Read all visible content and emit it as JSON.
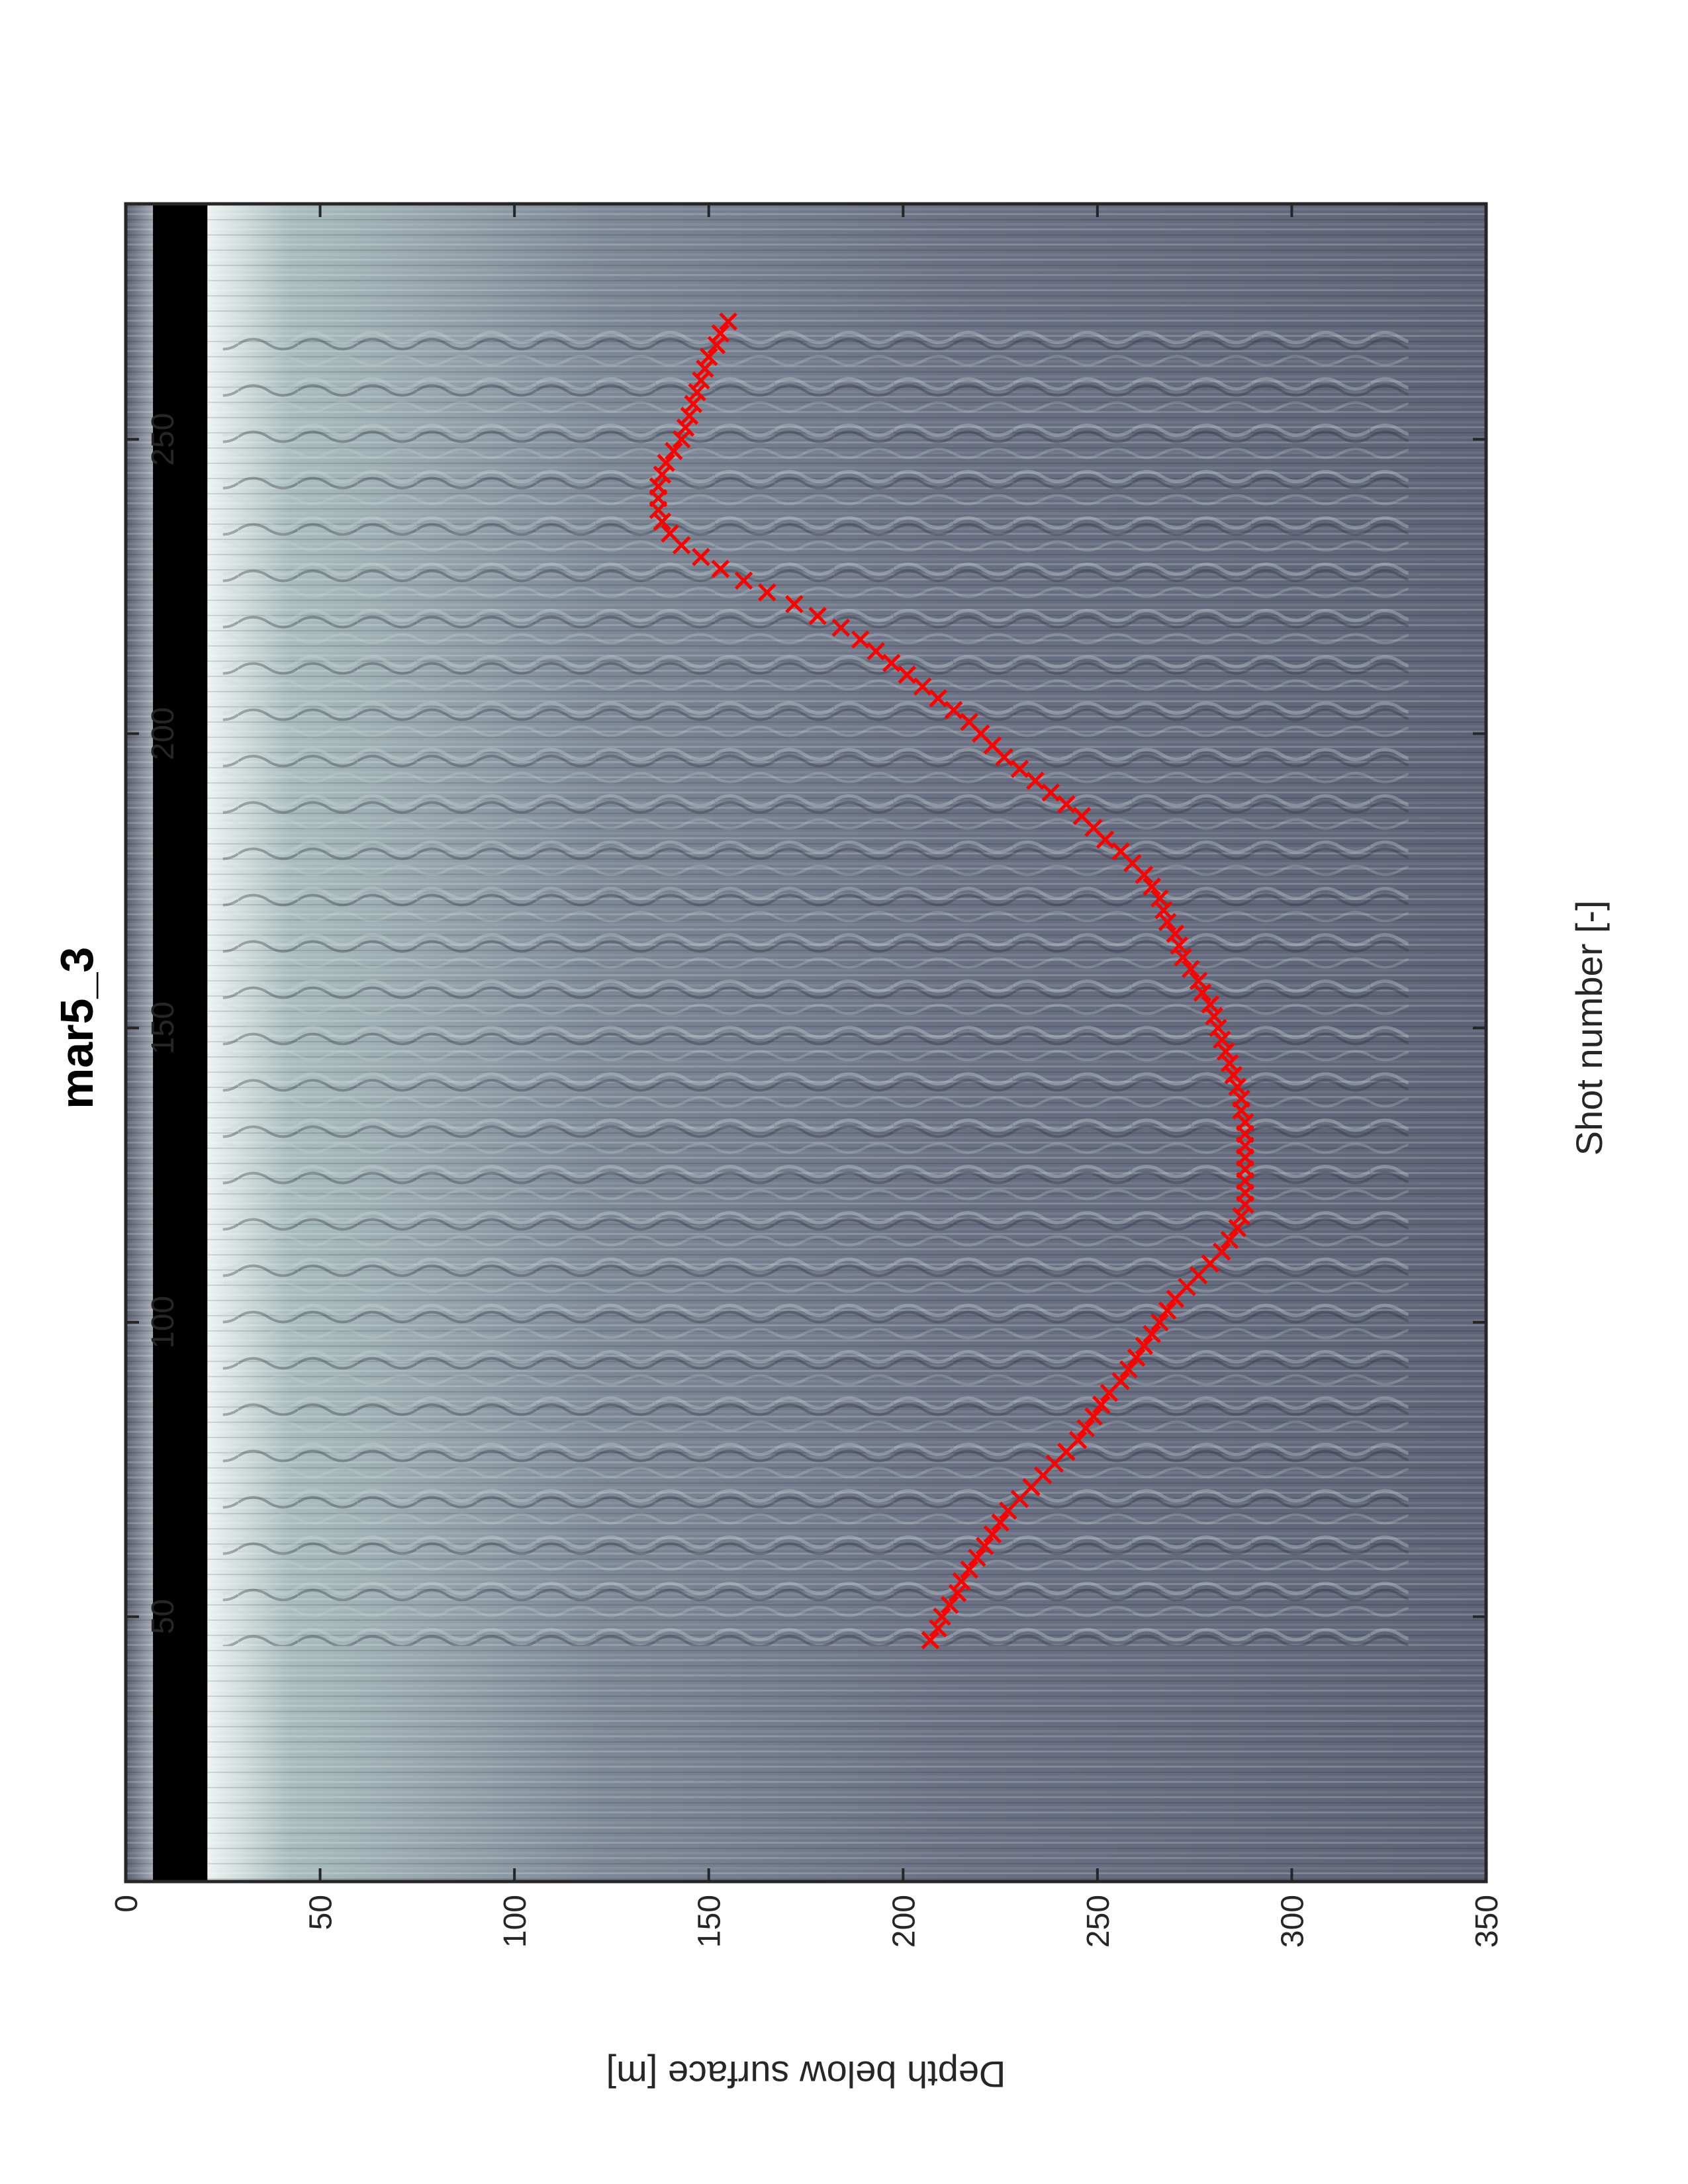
{
  "chart_data": {
    "type": "scatter",
    "title": "mar5_3",
    "xlabel": "Shot number [-]",
    "ylabel": "Depth below surface [m]",
    "xlim": [
      5,
      290
    ],
    "ylim": [
      0,
      350
    ],
    "x_ticks": [
      "50",
      "100",
      "150",
      "200",
      "250"
    ],
    "y_ticks": [
      "0",
      "50",
      "100",
      "150",
      "200",
      "250",
      "300",
      "350"
    ],
    "orientation": "page rotated 90 degrees counter-clockwise",
    "background": "grayscale radargram image (bone colormap)",
    "marker": "x",
    "marker_color": "#ff0000",
    "series": [
      {
        "x": [
          46,
          48,
          50,
          52,
          54,
          56,
          58,
          60,
          62,
          64,
          66,
          68,
          70,
          72,
          74,
          76,
          78,
          80,
          82,
          84,
          86,
          88,
          90,
          92,
          94,
          96,
          98,
          100,
          102,
          104,
          106,
          108,
          110,
          112,
          114,
          116,
          118,
          120,
          122,
          124,
          126,
          128,
          130,
          132,
          134,
          136,
          138,
          140,
          142,
          144,
          146,
          148,
          150,
          152,
          154,
          156,
          158,
          160,
          162,
          164,
          166,
          168,
          170,
          172,
          174,
          176,
          178,
          180,
          182,
          184,
          186,
          188,
          190,
          192,
          194,
          196,
          198,
          200,
          202,
          204,
          206,
          208,
          210,
          212,
          214,
          216,
          218,
          220,
          222,
          224,
          226,
          228,
          230,
          232,
          234,
          236,
          238,
          240,
          242,
          244,
          246,
          248,
          250,
          252,
          254,
          256,
          258,
          260,
          262,
          264,
          266,
          268,
          270
        ],
        "y": [
          207,
          209,
          210,
          212,
          214,
          215,
          217,
          219,
          221,
          223,
          225,
          227,
          230,
          233,
          236,
          239,
          242,
          245,
          247,
          249,
          251,
          253,
          256,
          258,
          260,
          262,
          264,
          266,
          268,
          270,
          273,
          276,
          279,
          282,
          284,
          286,
          287,
          288,
          288,
          288,
          288,
          288,
          288,
          288,
          288,
          287,
          287,
          286,
          285,
          284,
          283,
          282,
          281,
          280,
          279,
          277,
          276,
          274,
          272,
          271,
          270,
          268,
          267,
          266,
          264,
          262,
          259,
          256,
          252,
          249,
          246,
          242,
          238,
          234,
          230,
          226,
          223,
          220,
          217,
          213,
          209,
          205,
          201,
          197,
          193,
          189,
          184,
          178,
          172,
          165,
          159,
          153,
          148,
          143,
          140,
          138,
          137,
          137,
          137,
          138,
          139,
          141,
          143,
          144,
          145,
          146,
          147,
          148,
          149,
          150,
          152,
          153,
          155
        ]
      }
    ]
  }
}
